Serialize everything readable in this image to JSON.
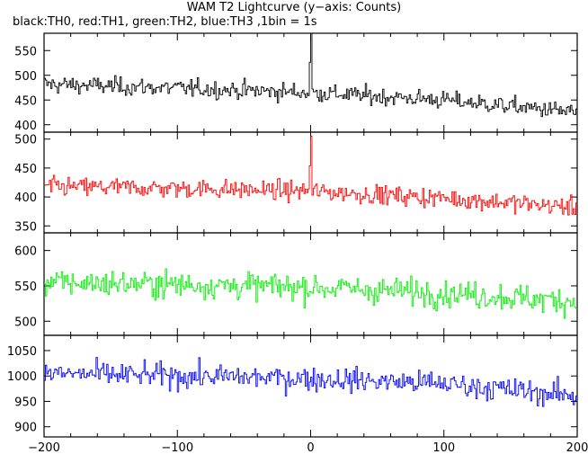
{
  "header": {
    "title": "WAM T2 Lightcurve (y−axis: Counts)",
    "subtitle": "black:TH0, red:TH1, green:TH2, blue:TH3 ,1bin = 1s"
  },
  "chart_data": [
    {
      "type": "line",
      "name": "TH0",
      "color": "#000000",
      "xlim": [
        -200,
        200
      ],
      "ylim": [
        385,
        585
      ],
      "yticks": [
        "400",
        "450",
        "500",
        "550"
      ],
      "baseline": [
        [
          -200,
          482
        ],
        [
          -100,
          474
        ],
        [
          0,
          465
        ],
        [
          100,
          450
        ],
        [
          200,
          425
        ]
      ],
      "noise": 23,
      "spike": {
        "x": 0,
        "y": 585
      },
      "series": [
        {
          "name": "TH0"
        }
      ]
    },
    {
      "type": "line",
      "name": "TH1",
      "color": "#ff0000",
      "xlim": [
        -200,
        200
      ],
      "ylim": [
        338,
        512
      ],
      "yticks": [
        "350",
        "400",
        "450",
        "500"
      ],
      "baseline": [
        [
          -200,
          418
        ],
        [
          -100,
          415
        ],
        [
          0,
          410
        ],
        [
          100,
          398
        ],
        [
          200,
          382
        ]
      ],
      "noise": 21,
      "spike": {
        "x": 0,
        "y": 505
      },
      "series": [
        {
          "name": "TH1"
        }
      ]
    },
    {
      "type": "line",
      "name": "TH2",
      "color": "#00ee00",
      "xlim": [
        -200,
        200
      ],
      "ylim": [
        480,
        625
      ],
      "yticks": [
        "500",
        "550",
        "600"
      ],
      "baseline": [
        [
          -200,
          555
        ],
        [
          -100,
          552
        ],
        [
          0,
          548
        ],
        [
          100,
          540
        ],
        [
          200,
          528
        ]
      ],
      "noise": 24,
      "spike": null,
      "series": [
        {
          "name": "TH2"
        }
      ]
    },
    {
      "type": "line",
      "name": "TH3",
      "color": "#0000ff",
      "xlim": [
        -200,
        200
      ],
      "ylim": [
        880,
        1080
      ],
      "yticks": [
        "900",
        "950",
        "1000",
        "1050"
      ],
      "baseline": [
        [
          -200,
          1005
        ],
        [
          -100,
          1000
        ],
        [
          0,
          995
        ],
        [
          100,
          985
        ],
        [
          200,
          960
        ]
      ],
      "noise": 30,
      "spike": null,
      "series": [
        {
          "name": "TH3"
        }
      ]
    }
  ],
  "x_axis": {
    "ticks": [
      "−200",
      "−100",
      "0",
      "100",
      "200"
    ],
    "values": [
      -200,
      -100,
      0,
      100,
      200
    ]
  }
}
